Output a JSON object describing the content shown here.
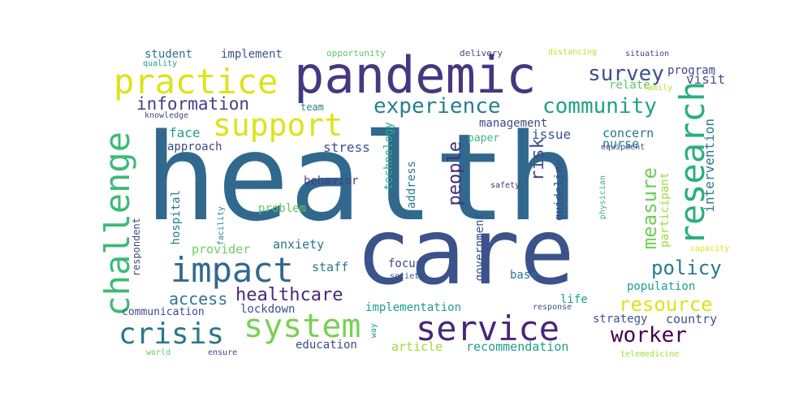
{
  "cloud": {
    "words": [
      {
        "text": "health",
        "color": "#31688e"
      },
      {
        "text": "care",
        "color": "#3b528b"
      },
      {
        "text": "pandemic",
        "color": "#453781"
      },
      {
        "text": "practice",
        "color": "#dde318"
      },
      {
        "text": "support",
        "color": "#dde318"
      },
      {
        "text": "research",
        "color": "#29af7f"
      },
      {
        "text": "challenge",
        "color": "#3cbb75"
      },
      {
        "text": "impact",
        "color": "#31688e"
      },
      {
        "text": "crisis",
        "color": "#2a788e"
      },
      {
        "text": "system",
        "color": "#7ad151"
      },
      {
        "text": "service",
        "color": "#482777"
      },
      {
        "text": "community",
        "color": "#1fa187"
      },
      {
        "text": "experience",
        "color": "#277f8e"
      },
      {
        "text": "information",
        "color": "#433e85"
      },
      {
        "text": "survey",
        "color": "#3b528b"
      },
      {
        "text": "worker",
        "color": "#440154"
      },
      {
        "text": "resource",
        "color": "#dde318"
      },
      {
        "text": "policy",
        "color": "#2a788e"
      },
      {
        "text": "measure",
        "color": "#6ece58"
      },
      {
        "text": "risk",
        "color": "#3e4989"
      },
      {
        "text": "people",
        "color": "#472d7b"
      },
      {
        "text": "healthcare",
        "color": "#482878"
      },
      {
        "text": "access",
        "color": "#2a788e"
      },
      {
        "text": "student",
        "color": "#2c728e"
      },
      {
        "text": "implement",
        "color": "#3b528b"
      },
      {
        "text": "opportunity",
        "color": "#5ec962"
      },
      {
        "text": "delivery",
        "color": "#3e4989"
      },
      {
        "text": "distancing",
        "color": "#bddf26"
      },
      {
        "text": "situation",
        "color": "#414487"
      },
      {
        "text": "quality",
        "color": "#1f9e89"
      },
      {
        "text": "visit",
        "color": "#3b528b"
      },
      {
        "text": "program",
        "color": "#414487"
      },
      {
        "text": "relate",
        "color": "#5ec962"
      },
      {
        "text": "family",
        "color": "#bddf26"
      },
      {
        "text": "team",
        "color": "#26828e"
      },
      {
        "text": "knowledge",
        "color": "#3e4989"
      },
      {
        "text": "management",
        "color": "#3e4989"
      },
      {
        "text": "concern",
        "color": "#2c728e"
      },
      {
        "text": "nurse",
        "color": "#277f8e"
      },
      {
        "text": "face",
        "color": "#1f9e89"
      },
      {
        "text": "issue",
        "color": "#3b528b"
      },
      {
        "text": "approach",
        "color": "#3e4989"
      },
      {
        "text": "stress",
        "color": "#3b528b"
      },
      {
        "text": "paper",
        "color": "#3cbb75"
      },
      {
        "text": "equipment",
        "color": "#3e4989"
      },
      {
        "text": "technology",
        "color": "#2ab07f"
      },
      {
        "text": "guideline",
        "color": "#3e4989"
      },
      {
        "text": "intervention",
        "color": "#2a788e"
      },
      {
        "text": "physician",
        "color": "#35b779"
      },
      {
        "text": "participant",
        "color": "#a0da39"
      },
      {
        "text": "behavior",
        "color": "#433e85"
      },
      {
        "text": "safety",
        "color": "#46327e"
      },
      {
        "text": "facility",
        "color": "#26828e"
      },
      {
        "text": "hospital",
        "color": "#2a788e"
      },
      {
        "text": "address",
        "color": "#2a788e"
      },
      {
        "text": "problem",
        "color": "#5ec962"
      },
      {
        "text": "respondent",
        "color": "#3e4989"
      },
      {
        "text": "government",
        "color": "#3b528b"
      },
      {
        "text": "provider",
        "color": "#6ece58"
      },
      {
        "text": "anxiety",
        "color": "#2c728e"
      },
      {
        "text": "capacity",
        "color": "#dde318"
      },
      {
        "text": "staff",
        "color": "#2a788e"
      },
      {
        "text": "focus",
        "color": "#3e4989"
      },
      {
        "text": "base",
        "color": "#2a788e"
      },
      {
        "text": "society",
        "color": "#3b528b"
      },
      {
        "text": "population",
        "color": "#1f9e89"
      },
      {
        "text": "life",
        "color": "#1f9e89"
      },
      {
        "text": "lockdown",
        "color": "#3b528b"
      },
      {
        "text": "communication",
        "color": "#3e4989"
      },
      {
        "text": "implementation",
        "color": "#1f9e89"
      },
      {
        "text": "response",
        "color": "#3b528b"
      },
      {
        "text": "strategy",
        "color": "#3b528b"
      },
      {
        "text": "country",
        "color": "#3b528b"
      },
      {
        "text": "way",
        "color": "#1f9e89"
      },
      {
        "text": "education",
        "color": "#3e4989"
      },
      {
        "text": "article",
        "color": "#a0da39"
      },
      {
        "text": "recommendation",
        "color": "#1f9e89"
      },
      {
        "text": "world",
        "color": "#5ec962"
      },
      {
        "text": "ensure",
        "color": "#3e4989"
      },
      {
        "text": "telemedicine",
        "color": "#a0da39"
      }
    ]
  }
}
